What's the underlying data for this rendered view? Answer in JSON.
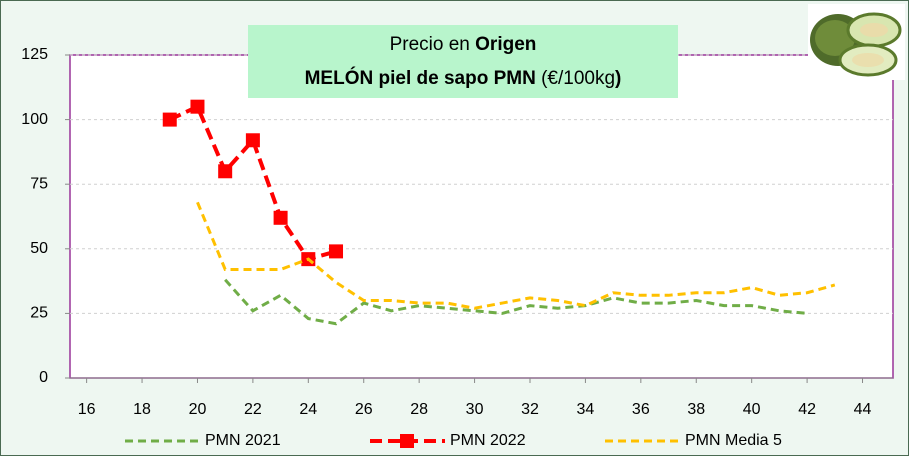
{
  "chart_data": {
    "type": "line",
    "title_lines": [
      [
        {
          "text": "Precio en ",
          "bold": false
        },
        {
          "text": "Origen",
          "bold": true
        }
      ],
      [
        {
          "text": "MELÓN piel de sapo PMN",
          "bold": true
        },
        {
          "text": " (€/100kg",
          "bold": false
        },
        {
          "text": ")",
          "bold": true
        }
      ]
    ],
    "x": [
      19,
      20,
      21,
      22,
      23,
      24,
      25,
      26,
      27,
      28,
      29,
      30,
      31,
      32,
      33,
      34,
      35,
      36,
      37,
      38,
      39,
      40,
      41,
      42,
      43
    ],
    "series": [
      {
        "name": "PMN 2021",
        "color": "#70ad47",
        "marker": null,
        "values": [
          null,
          null,
          38,
          26,
          32,
          23,
          21,
          29,
          26,
          28,
          27,
          26,
          25,
          28,
          27,
          28,
          31,
          29,
          29,
          30,
          28,
          28,
          26,
          25,
          null
        ]
      },
      {
        "name": "PMN 2022",
        "color": "#ff0000",
        "marker": "square",
        "values": [
          100,
          105,
          80,
          92,
          62,
          46,
          49,
          null,
          null,
          null,
          null,
          null,
          null,
          null,
          null,
          null,
          null,
          null,
          null,
          null,
          null,
          null,
          null,
          null,
          null
        ]
      },
      {
        "name": "PMN Media 5",
        "color": "#ffc000",
        "marker": null,
        "values": [
          null,
          68,
          42,
          42,
          42,
          46,
          37,
          30,
          30,
          29,
          29,
          27,
          29,
          31,
          30,
          28,
          33,
          32,
          32,
          33,
          33,
          35,
          32,
          33,
          36
        ]
      }
    ],
    "xlim": [
      15.4,
      45.1
    ],
    "xticks": [
      16,
      18,
      20,
      22,
      24,
      26,
      28,
      30,
      32,
      34,
      36,
      38,
      40,
      42,
      44
    ],
    "ylim": [
      0,
      125
    ],
    "yticks": [
      0,
      25,
      50,
      75,
      100,
      125
    ],
    "grid": true
  }
}
